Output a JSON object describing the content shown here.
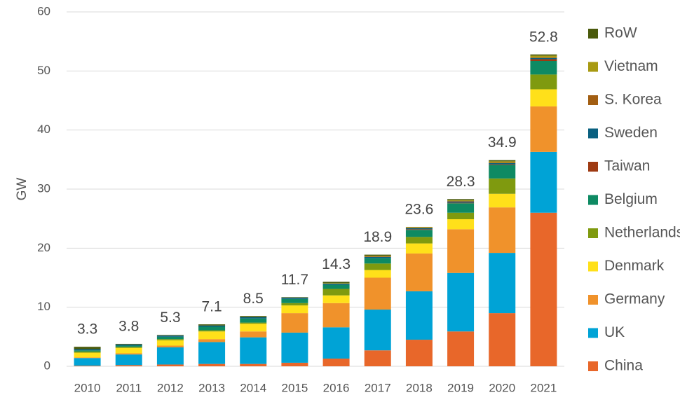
{
  "chart_data": {
    "type": "stacked-bar",
    "y_label": "GW",
    "categories": [
      "2010",
      "2011",
      "2012",
      "2013",
      "2014",
      "2015",
      "2016",
      "2017",
      "2018",
      "2019",
      "2020",
      "2021"
    ],
    "series": [
      {
        "name": "China",
        "color": "#e8672a",
        "values": [
          0.1,
          0.2,
          0.3,
          0.4,
          0.4,
          0.6,
          1.3,
          2.7,
          4.5,
          5.9,
          9.0,
          26.0
        ]
      },
      {
        "name": "UK",
        "color": "#00a3d6",
        "values": [
          1.3,
          1.8,
          2.9,
          3.7,
          4.5,
          5.1,
          5.3,
          6.9,
          8.2,
          9.9,
          10.2,
          10.3
        ]
      },
      {
        "name": "Germany",
        "color": "#f0922b",
        "values": [
          0.1,
          0.2,
          0.3,
          0.5,
          1.0,
          3.3,
          4.1,
          5.4,
          6.4,
          7.4,
          7.7,
          7.7
        ]
      },
      {
        "name": "Denmark",
        "color": "#ffe01a",
        "values": [
          0.8,
          0.9,
          0.9,
          1.3,
          1.3,
          1.3,
          1.3,
          1.3,
          1.7,
          1.7,
          2.3,
          2.9
        ]
      },
      {
        "name": "Netherlands",
        "color": "#7f9a0f",
        "values": [
          0.2,
          0.2,
          0.2,
          0.2,
          0.2,
          0.4,
          1.1,
          1.1,
          1.1,
          1.1,
          2.6,
          2.5
        ]
      },
      {
        "name": "Belgium",
        "color": "#0e8a63",
        "values": [
          0.2,
          0.2,
          0.4,
          0.6,
          0.7,
          0.7,
          0.7,
          0.9,
          1.2,
          1.6,
          2.3,
          2.3
        ]
      },
      {
        "name": "Taiwan",
        "color": "#9e3a12",
        "values": [
          0,
          0,
          0,
          0,
          0,
          0,
          0,
          0,
          0.1,
          0.1,
          0.1,
          0.3
        ]
      },
      {
        "name": "Sweden",
        "color": "#0a6080",
        "values": [
          0.2,
          0.2,
          0.2,
          0.2,
          0.2,
          0.2,
          0.2,
          0.2,
          0.2,
          0.2,
          0.2,
          0.2
        ]
      },
      {
        "name": "S. Korea",
        "color": "#a25e12",
        "values": [
          0,
          0,
          0,
          0,
          0,
          0,
          0,
          0.1,
          0.1,
          0.1,
          0.1,
          0.1
        ]
      },
      {
        "name": "Vietnam",
        "color": "#a89a12",
        "values": [
          0,
          0,
          0,
          0,
          0,
          0,
          0.1,
          0.1,
          0.1,
          0.1,
          0.2,
          0.3
        ]
      },
      {
        "name": "RoW",
        "color": "#4a5a0c",
        "values": [
          0.4,
          0.1,
          0.1,
          0.2,
          0.2,
          0.1,
          0.2,
          0.2,
          0,
          0.2,
          0.2,
          0.2
        ]
      }
    ],
    "totals": [
      3.3,
      3.8,
      5.3,
      7.1,
      8.5,
      11.7,
      14.3,
      18.9,
      23.6,
      28.3,
      34.9,
      52.8
    ],
    "ylim": [
      0,
      60
    ],
    "yticks": [
      0,
      10,
      20,
      30,
      40,
      50,
      60
    ],
    "grid": true
  }
}
